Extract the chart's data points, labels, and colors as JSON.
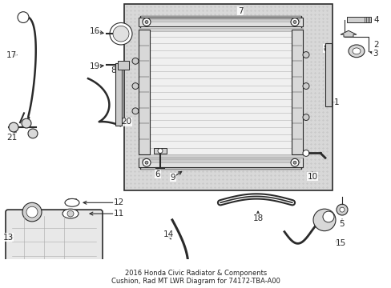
{
  "title": "2016 Honda Civic Radiator & Components\nCushion, Rad MT LWR Diagram for 74172-TBA-A00",
  "bg_color": "#ffffff",
  "lc": "#2a2a2a",
  "box_bg": "#d4d4d4",
  "core_bg": "#e8e8e8",
  "figsize": [
    4.89,
    3.6
  ],
  "dpi": 100,
  "font_size_title": 6.0,
  "font_size_label": 7.5
}
